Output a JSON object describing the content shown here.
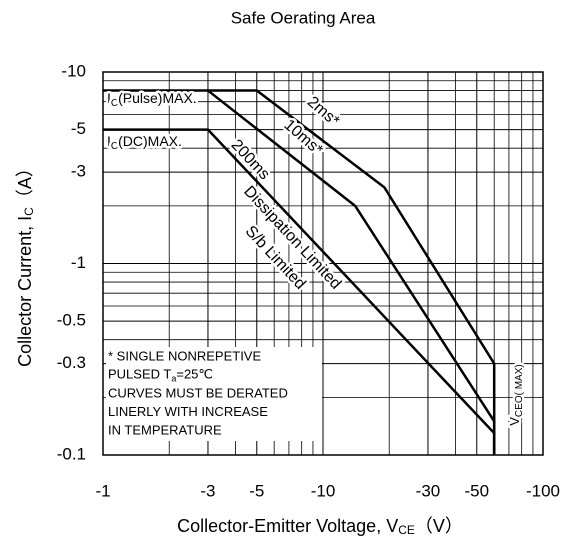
{
  "chart_data": {
    "type": "line",
    "title": "Safe Oerating Area",
    "x_label": {
      "text": "Collector-Emitter Voltage, V",
      "sub": "CE",
      "after": "（V）"
    },
    "y_label": {
      "text": "Collector Current, I",
      "sub": "C",
      "after": "（A）"
    },
    "log_x": true,
    "log_y": true,
    "grid": true,
    "xlim": [
      -1,
      -100
    ],
    "ylim": [
      -0.1,
      -10
    ],
    "xticks": [
      -1,
      -3,
      -5,
      -10,
      -30,
      -50,
      -100
    ],
    "yticks": [
      -10,
      -5,
      -3,
      -1,
      -0.5,
      -0.3,
      -0.1
    ],
    "minor_xticks": [
      -2,
      -4,
      -6,
      -7,
      -8,
      -9,
      -20,
      -40,
      -60,
      -70,
      -80,
      -90
    ],
    "minor_yticks": [
      -0.2,
      -0.4,
      -0.6,
      -0.7,
      -0.8,
      -0.9,
      -2,
      -4,
      -6,
      -7,
      -8,
      -9
    ],
    "series": [
      {
        "name": "2ms*",
        "color": "#000000",
        "x": [
          -1,
          -5,
          -19,
          -60,
          -60
        ],
        "values": [
          -8,
          -8,
          -2.5,
          -0.3,
          -0.1
        ]
      },
      {
        "name": "10ms*",
        "color": "#000000",
        "x": [
          -3,
          -14,
          -60,
          -60
        ],
        "values": [
          -8,
          -2,
          -0.15,
          -0.1
        ]
      },
      {
        "name": "200ms",
        "color": "#000000",
        "x": [
          -1,
          -3,
          -60,
          -60
        ],
        "values": [
          -5,
          -5,
          -0.13,
          -0.1
        ]
      }
    ],
    "annotations": {
      "pulse_max": {
        "text": "I",
        "sub": "C",
        "after": "(Pulse)MAX."
      },
      "dc_max": {
        "text": "I",
        "sub": "C",
        "after": "(DC)MAX."
      },
      "dissipation": "Dissipation Limited",
      "sb": "S/b Limited",
      "vceo": {
        "text": "V",
        "sub": "CEO( MAX)"
      },
      "note": [
        "* SINGLE NONREPETIVE",
        {
          "text": "PULSED T",
          "sub": "a",
          "after": "=25℃"
        },
        "CURVES MUST BE DERATED",
        "LINERLY WITH INCREASE",
        "IN TEMPERATURE"
      ]
    }
  }
}
